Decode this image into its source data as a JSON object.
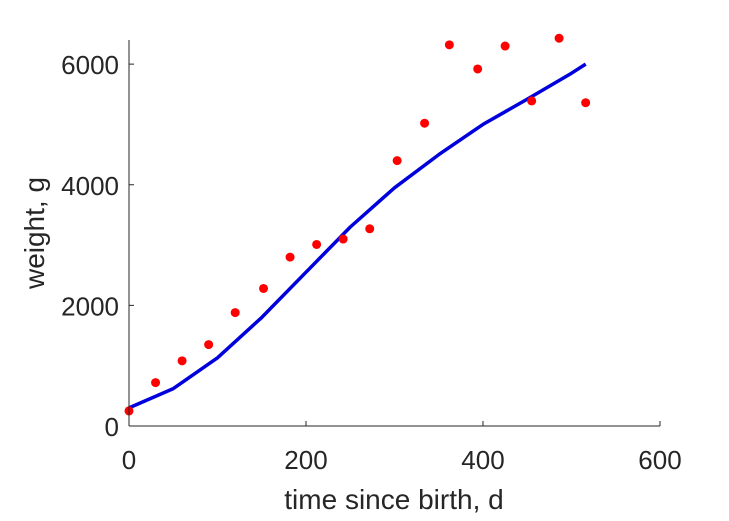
{
  "chart_data": {
    "type": "scatter",
    "title": "",
    "xlabel": "time since birth, d",
    "ylabel": "weight, g",
    "xlim": [
      0,
      600
    ],
    "ylim": [
      0,
      6400
    ],
    "xticks": [
      0,
      200,
      400,
      600
    ],
    "yticks": [
      0,
      2000,
      4000,
      6000
    ],
    "grid": false,
    "legend": "none",
    "series": [
      {
        "kind": "scatter",
        "color": "#ff0000",
        "x": [
          0,
          30,
          60,
          90,
          120,
          152,
          182,
          212,
          242,
          272,
          303,
          334,
          362,
          394,
          425,
          455,
          486,
          516
        ],
        "y": [
          250,
          720,
          1080,
          1350,
          1880,
          2280,
          2800,
          3010,
          3100,
          3270,
          4400,
          5020,
          6320,
          5920,
          6300,
          5390,
          6430,
          5360
        ]
      },
      {
        "kind": "line",
        "color": "#0000dd",
        "x": [
          0,
          50,
          100,
          150,
          200,
          250,
          300,
          350,
          400,
          450,
          500,
          516
        ],
        "y": [
          300,
          620,
          1130,
          1800,
          2550,
          3300,
          3950,
          4500,
          5000,
          5420,
          5850,
          6000
        ]
      }
    ]
  }
}
